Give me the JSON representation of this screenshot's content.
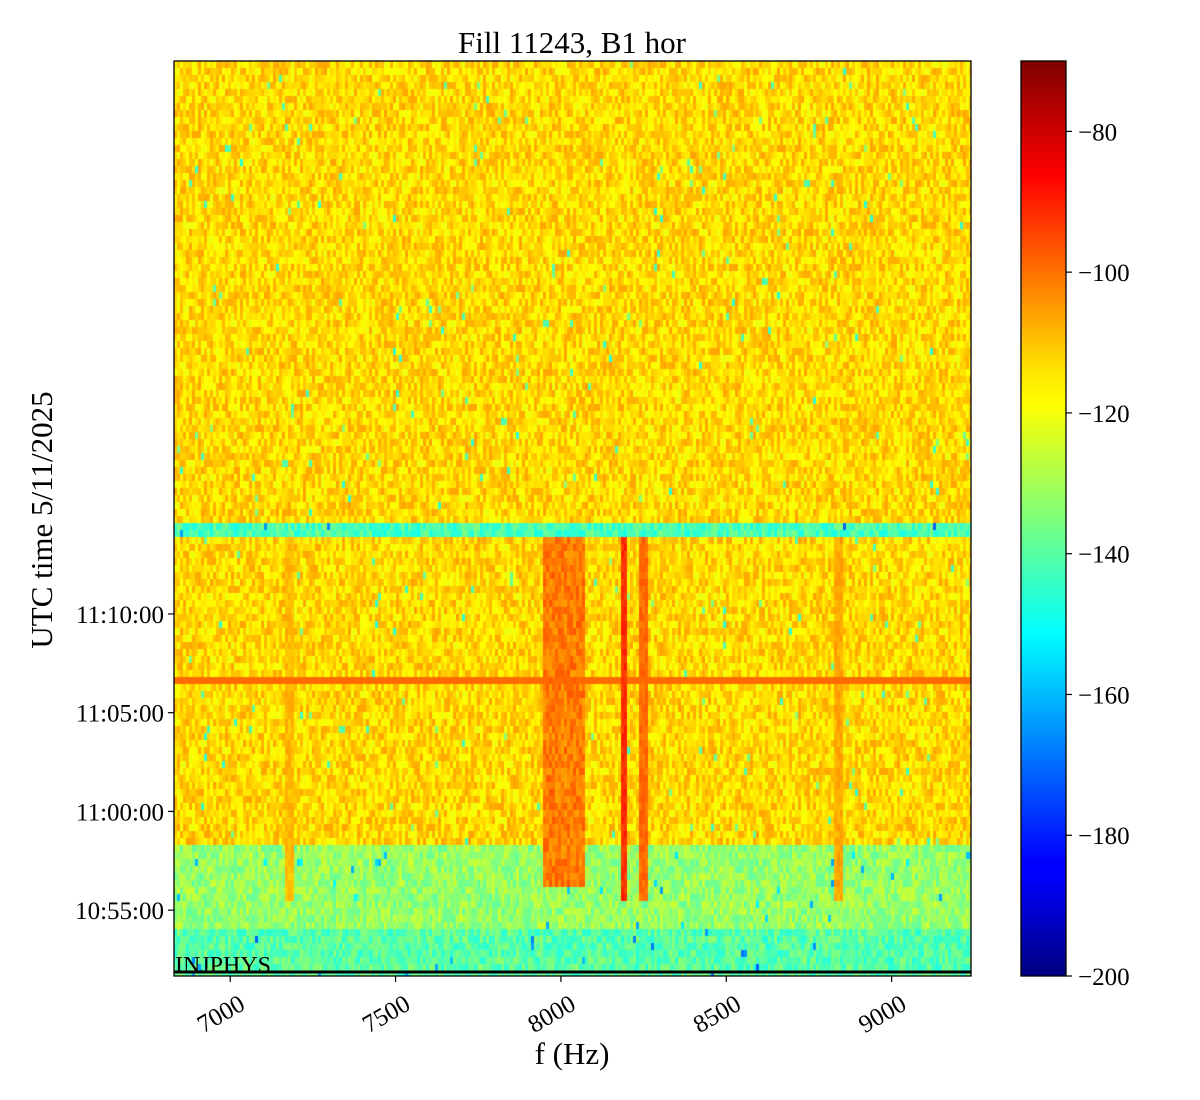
{
  "chart_data": {
    "type": "heatmap",
    "title": "Fill 11243, B1 hor",
    "xlabel": "f (Hz)",
    "ylabel": "UTC time 5/11/2025",
    "annotation": "INJPHYS",
    "xlim": [
      6830,
      9240
    ],
    "ylim_seconds_after_10_52_00": [
      -20,
      2760
    ],
    "xticks": [
      {
        "value": 7000,
        "label": "7000"
      },
      {
        "value": 7500,
        "label": "7500"
      },
      {
        "value": 8000,
        "label": "8000"
      },
      {
        "value": 8500,
        "label": "8500"
      },
      {
        "value": 9000,
        "label": "9000"
      }
    ],
    "yticks": [
      {
        "label": "10:55:00",
        "seconds": 180
      },
      {
        "label": "11:00:00",
        "seconds": 480
      },
      {
        "label": "11:05:00",
        "seconds": 780
      },
      {
        "label": "11:10:00",
        "seconds": 1080
      }
    ],
    "colorbar": {
      "colormap": "jet",
      "range": [
        -200,
        -70
      ],
      "ticks": [
        {
          "value": -80,
          "label": "−80"
        },
        {
          "value": -100,
          "label": "−100"
        },
        {
          "value": -120,
          "label": "−120"
        },
        {
          "value": -140,
          "label": "−140"
        },
        {
          "value": -160,
          "label": "−160"
        },
        {
          "value": -180,
          "label": "−180"
        },
        {
          "value": -200,
          "label": "−200"
        }
      ]
    },
    "regions": [
      {
        "t_from": -20,
        "t_to": 120,
        "level": -140
      },
      {
        "t_from": 120,
        "t_to": 380,
        "level": -132
      },
      {
        "t_from": 380,
        "t_to": 1320,
        "level": -114
      },
      {
        "t_from": 1320,
        "t_to": 1350,
        "level": -142
      }
    ],
    "lines": [
      {
        "kind": "horizontal",
        "t": 880,
        "level": -100
      },
      {
        "kind": "vertical",
        "f": 8190,
        "level": -92
      },
      {
        "kind": "vertical",
        "f": 8250,
        "level": -100
      },
      {
        "kind": "vertical",
        "f": 8840,
        "level": -108
      },
      {
        "kind": "vertical",
        "f": 7180,
        "level": -110
      }
    ],
    "bands": [
      {
        "f_from": 7950,
        "f_to": 8070,
        "level": -102
      }
    ]
  }
}
